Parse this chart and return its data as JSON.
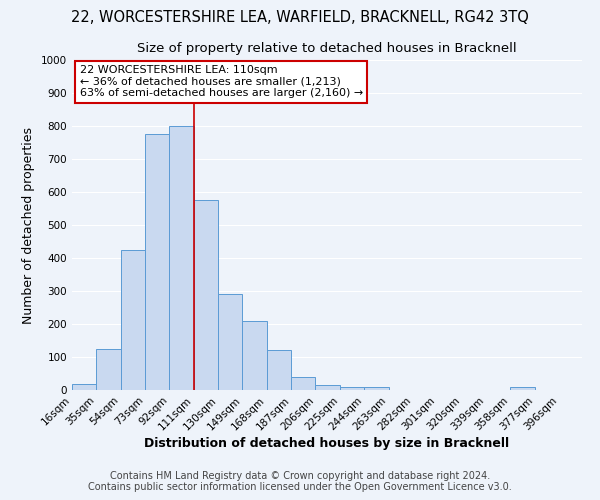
{
  "title": "22, WORCESTERSHIRE LEA, WARFIELD, BRACKNELL, RG42 3TQ",
  "subtitle": "Size of property relative to detached houses in Bracknell",
  "xlabel": "Distribution of detached houses by size in Bracknell",
  "ylabel": "Number of detached properties",
  "bar_left_edges": [
    16,
    35,
    54,
    73,
    92,
    111,
    130,
    149,
    168,
    187,
    206,
    225,
    244,
    263,
    282,
    301,
    320,
    339,
    358,
    377
  ],
  "bar_values": [
    18,
    125,
    425,
    775,
    800,
    575,
    290,
    210,
    122,
    40,
    15,
    10,
    10,
    0,
    0,
    0,
    0,
    0,
    10,
    0
  ],
  "bin_width": 19,
  "tick_labels": [
    "16sqm",
    "35sqm",
    "54sqm",
    "73sqm",
    "92sqm",
    "111sqm",
    "130sqm",
    "149sqm",
    "168sqm",
    "187sqm",
    "206sqm",
    "225sqm",
    "244sqm",
    "263sqm",
    "282sqm",
    "301sqm",
    "320sqm",
    "339sqm",
    "358sqm",
    "377sqm",
    "396sqm"
  ],
  "bar_color": "#c9d9f0",
  "bar_edge_color": "#5b9bd5",
  "property_line_x": 111,
  "property_line_color": "#cc0000",
  "annotation_text": "22 WORCESTERSHIRE LEA: 110sqm\n← 36% of detached houses are smaller (1,213)\n63% of semi-detached houses are larger (2,160) →",
  "annotation_box_color": "#ffffff",
  "annotation_box_edge": "#cc0000",
  "ylim": [
    0,
    1000
  ],
  "yticks": [
    0,
    100,
    200,
    300,
    400,
    500,
    600,
    700,
    800,
    900,
    1000
  ],
  "bg_color": "#eef3fa",
  "grid_color": "#ffffff",
  "footer_line1": "Contains HM Land Registry data © Crown copyright and database right 2024.",
  "footer_line2": "Contains public sector information licensed under the Open Government Licence v3.0.",
  "title_fontsize": 10.5,
  "subtitle_fontsize": 9.5,
  "axis_label_fontsize": 9,
  "tick_fontsize": 7.5,
  "annotation_fontsize": 8,
  "footer_fontsize": 7
}
